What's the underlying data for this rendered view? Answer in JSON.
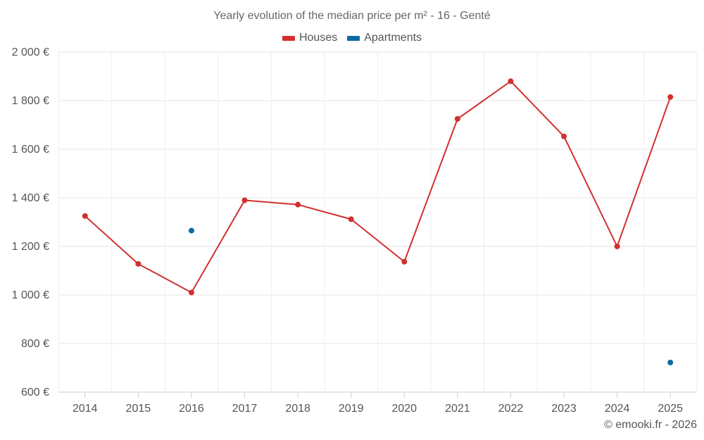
{
  "chart_data": {
    "type": "line",
    "title": "Yearly evolution of the median price per m² - 16 - Genté",
    "categories": [
      "2014",
      "2015",
      "2016",
      "2017",
      "2018",
      "2019",
      "2020",
      "2021",
      "2022",
      "2023",
      "2024",
      "2025"
    ],
    "ylim": [
      600,
      2000
    ],
    "yticks": [
      600,
      800,
      1000,
      1200,
      1400,
      1600,
      1800,
      2000
    ],
    "ytick_labels": [
      "600 €",
      "800 €",
      "1 000 €",
      "1 200 €",
      "1 400 €",
      "1 600 €",
      "1 800 €",
      "2 000 €"
    ],
    "grid": true,
    "legend_position": "top-center",
    "series": [
      {
        "name": "Houses",
        "color": "#d32f2f",
        "values": [
          1325,
          1128,
          1010,
          1390,
          1372,
          1312,
          1137,
          1725,
          1880,
          1653,
          1200,
          1815
        ]
      },
      {
        "name": "Apartments",
        "color": "#0b6aa2",
        "values": [
          null,
          null,
          1265,
          null,
          null,
          null,
          null,
          null,
          null,
          null,
          null,
          722
        ]
      }
    ]
  },
  "credit": "© emooki.fr - 2026"
}
